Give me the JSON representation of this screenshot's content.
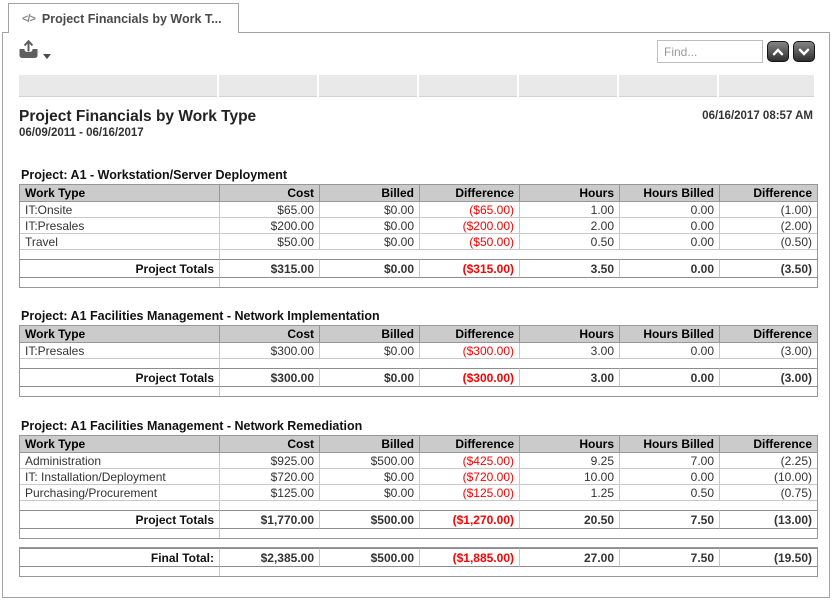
{
  "tab": {
    "icon": "</>",
    "label": "Project Financials by Work T..."
  },
  "toolbar": {
    "find_placeholder": "Find..."
  },
  "report": {
    "title": "Project Financials by Work Type",
    "date_range": "06/09/2011 - 06/16/2017",
    "generated_at": "06/16/2017 08:57 AM",
    "columns": [
      "Work Type",
      "Cost",
      "Billed",
      "Difference",
      "Hours",
      "Hours Billed",
      "Difference"
    ],
    "sections": [
      {
        "project": "Project: A1 - Workstation/Server Deployment",
        "rows": [
          [
            "IT:Onsite",
            "$65.00",
            "$0.00",
            "($65.00)",
            "1.00",
            "0.00",
            "(1.00)"
          ],
          [
            "IT:Presales",
            "$200.00",
            "$0.00",
            "($200.00)",
            "2.00",
            "0.00",
            "(2.00)"
          ],
          [
            "Travel",
            "$50.00",
            "$0.00",
            "($50.00)",
            "0.50",
            "0.00",
            "(0.50)"
          ]
        ],
        "totals_label": "Project Totals",
        "totals": [
          "$315.00",
          "$0.00",
          "($315.00)",
          "3.50",
          "0.00",
          "(3.50)"
        ]
      },
      {
        "project": "Project: A1 Facilities Management - Network Implementation",
        "rows": [
          [
            "IT:Presales",
            "$300.00",
            "$0.00",
            "($300.00)",
            "3.00",
            "0.00",
            "(3.00)"
          ]
        ],
        "totals_label": "Project Totals",
        "totals": [
          "$300.00",
          "$0.00",
          "($300.00)",
          "3.00",
          "0.00",
          "(3.00)"
        ]
      },
      {
        "project": "Project: A1 Facilities Management - Network Remediation",
        "rows": [
          [
            "Administration",
            "$925.00",
            "$500.00",
            "($425.00)",
            "9.25",
            "7.00",
            "(2.25)"
          ],
          [
            "IT: Installation/Deployment",
            "$720.00",
            "$0.00",
            "($720.00)",
            "10.00",
            "0.00",
            "(10.00)"
          ],
          [
            "Purchasing/Procurement",
            "$125.00",
            "$0.00",
            "($125.00)",
            "1.25",
            "0.50",
            "(0.75)"
          ]
        ],
        "totals_label": "Project Totals",
        "totals": [
          "$1,770.00",
          "$500.00",
          "($1,270.00)",
          "20.50",
          "7.50",
          "(13.00)"
        ]
      }
    ],
    "final_total": {
      "label": "Final Total:",
      "values": [
        "$2,385.00",
        "$500.00",
        "($1,885.00)",
        "27.00",
        "7.50",
        "(19.50)"
      ]
    }
  },
  "colors": {
    "negative": "#ff0000",
    "header_bg": "#cbcbcb",
    "table_border": "#979797",
    "ruler_bg": "#e9e9e9"
  }
}
